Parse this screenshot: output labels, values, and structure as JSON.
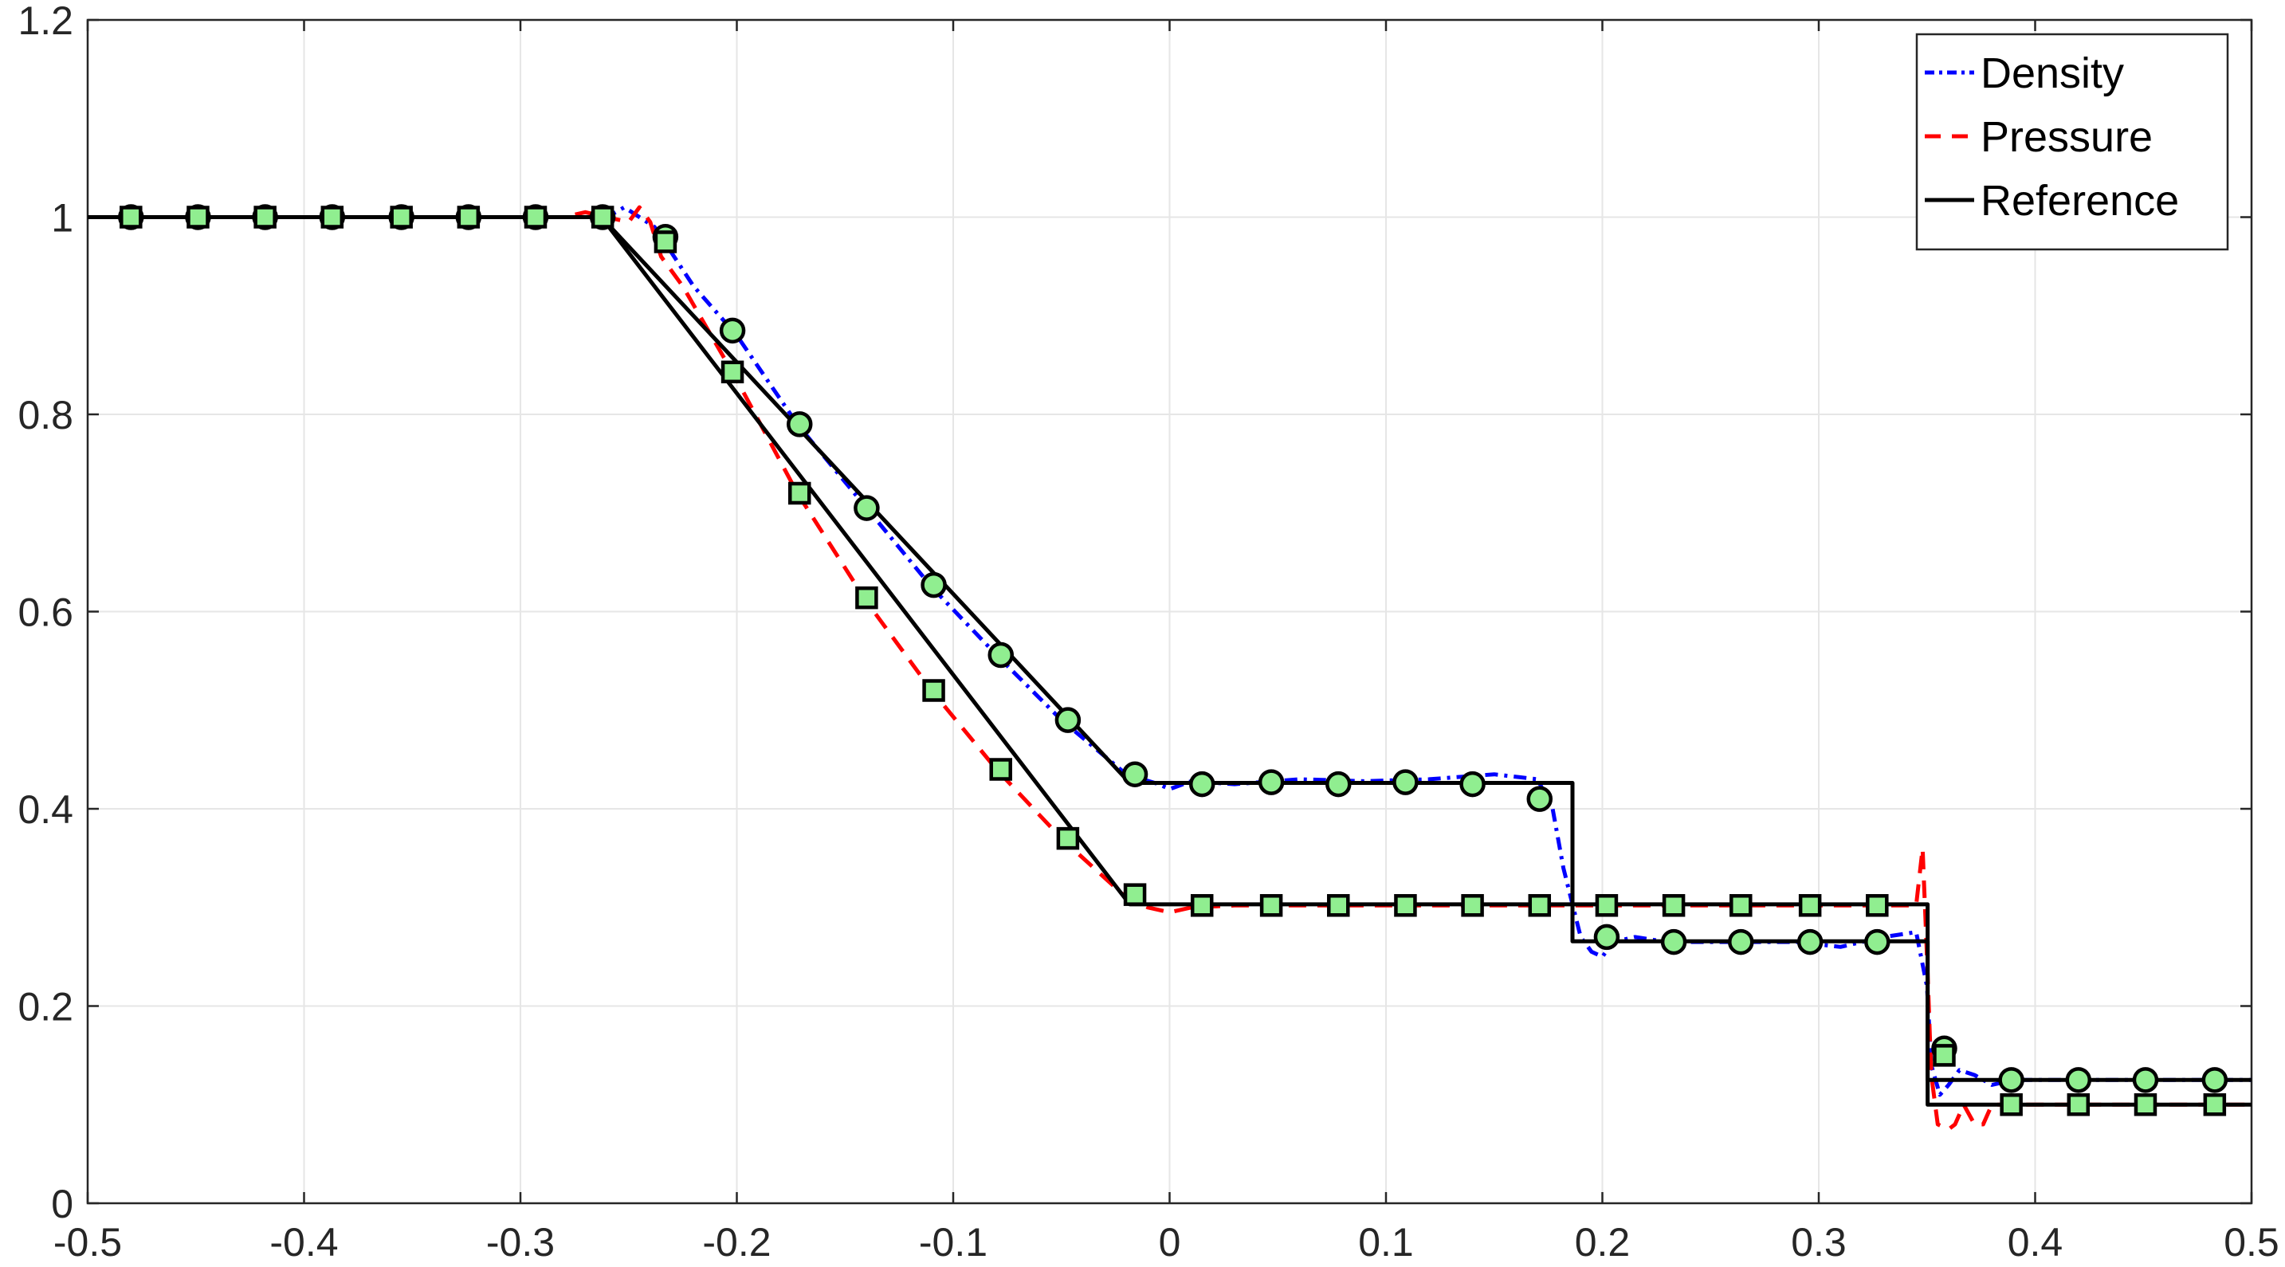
{
  "chart_data": {
    "type": "line",
    "title": "",
    "xlabel": "",
    "ylabel": "",
    "xlim": [
      -0.5,
      0.5
    ],
    "ylim": [
      0,
      1.2
    ],
    "grid": true,
    "legend_position": "top-right",
    "x_ticks": [
      {
        "value": -0.5,
        "label": "-0.5"
      },
      {
        "value": -0.4,
        "label": "-0.4"
      },
      {
        "value": -0.3,
        "label": "-0.3"
      },
      {
        "value": -0.2,
        "label": "-0.2"
      },
      {
        "value": -0.1,
        "label": "-0.1"
      },
      {
        "value": 0,
        "label": "0"
      },
      {
        "value": 0.1,
        "label": "0.1"
      },
      {
        "value": 0.2,
        "label": "0.2"
      },
      {
        "value": 0.3,
        "label": "0.3"
      },
      {
        "value": 0.4,
        "label": "0.4"
      },
      {
        "value": 0.5,
        "label": "0.5"
      }
    ],
    "y_ticks": [
      {
        "value": 0,
        "label": "0"
      },
      {
        "value": 0.2,
        "label": "0.2"
      },
      {
        "value": 0.4,
        "label": "0.4"
      },
      {
        "value": 0.6,
        "label": "0.6"
      },
      {
        "value": 0.8,
        "label": "0.8"
      },
      {
        "value": 1,
        "label": "1"
      },
      {
        "value": 1.2,
        "label": "1.2"
      }
    ],
    "series": [
      {
        "name": "Density",
        "color": "#0000ff",
        "style": "dash-dot",
        "marker": "circle",
        "marker_color": "#90ee90",
        "x": [
          -0.5,
          -0.3,
          -0.26,
          -0.252,
          -0.245,
          -0.238,
          -0.232,
          -0.22,
          -0.2,
          -0.172,
          -0.14,
          -0.11,
          -0.08,
          -0.05,
          -0.02,
          -0.005,
          0.0,
          0.01,
          0.03,
          0.06,
          0.09,
          0.12,
          0.15,
          0.17,
          0.177,
          0.182,
          0.19,
          0.195,
          0.2,
          0.205,
          0.215,
          0.23,
          0.26,
          0.29,
          0.31,
          0.33,
          0.345,
          0.35,
          0.352,
          0.356,
          0.36,
          0.365,
          0.372,
          0.38,
          0.39,
          0.42,
          0.45,
          0.5
        ],
        "y": [
          1.0,
          1.0,
          1.0,
          1.01,
          1.0,
          0.99,
          0.97,
          0.93,
          0.88,
          0.79,
          0.705,
          0.625,
          0.556,
          0.49,
          0.435,
          0.425,
          0.42,
          0.428,
          0.425,
          0.43,
          0.428,
          0.43,
          0.435,
          0.43,
          0.4,
          0.34,
          0.27,
          0.255,
          0.25,
          0.265,
          0.27,
          0.265,
          0.265,
          0.265,
          0.26,
          0.27,
          0.275,
          0.22,
          0.14,
          0.11,
          0.12,
          0.135,
          0.13,
          0.12,
          0.125,
          0.125,
          0.125,
          0.125
        ],
        "markers_x": [
          -0.48,
          -0.449,
          -0.418,
          -0.387,
          -0.355,
          -0.324,
          -0.293,
          -0.262,
          -0.233,
          -0.202,
          -0.171,
          -0.14,
          -0.109,
          -0.078,
          -0.047,
          -0.016,
          0.015,
          0.047,
          0.078,
          0.109,
          0.14,
          0.171,
          0.202,
          0.233,
          0.264,
          0.296,
          0.327,
          0.358,
          0.389,
          0.42,
          0.451,
          0.483
        ],
        "markers_y": [
          1.0,
          1.0,
          1.0,
          1.0,
          1.0,
          1.0,
          1.0,
          1.0,
          0.98,
          0.885,
          0.79,
          0.705,
          0.627,
          0.556,
          0.49,
          0.435,
          0.425,
          0.427,
          0.425,
          0.427,
          0.425,
          0.41,
          0.27,
          0.265,
          0.265,
          0.265,
          0.265,
          0.157,
          0.125,
          0.125,
          0.125,
          0.125
        ]
      },
      {
        "name": "Pressure",
        "color": "#ff0000",
        "style": "dashed",
        "marker": "square",
        "marker_color": "#90ee90",
        "x": [
          -0.5,
          -0.28,
          -0.27,
          -0.26,
          -0.25,
          -0.245,
          -0.24,
          -0.235,
          -0.225,
          -0.2,
          -0.172,
          -0.14,
          -0.11,
          -0.08,
          -0.05,
          -0.02,
          -0.01,
          0.0,
          0.01,
          0.03,
          0.06,
          0.09,
          0.12,
          0.15,
          0.18,
          0.21,
          0.24,
          0.27,
          0.3,
          0.33,
          0.345,
          0.348,
          0.35,
          0.352,
          0.355,
          0.36,
          0.363,
          0.367,
          0.372,
          0.376,
          0.38,
          0.39,
          0.5
        ],
        "y": [
          1.0,
          1.0,
          1.005,
          1.0,
          0.995,
          1.01,
          0.995,
          0.96,
          0.93,
          0.835,
          0.72,
          0.61,
          0.52,
          0.44,
          0.37,
          0.31,
          0.3,
          0.295,
          0.3,
          0.302,
          0.302,
          0.302,
          0.302,
          0.302,
          0.302,
          0.302,
          0.302,
          0.302,
          0.302,
          0.302,
          0.302,
          0.36,
          0.25,
          0.13,
          0.08,
          0.075,
          0.08,
          0.1,
          0.08,
          0.08,
          0.1,
          0.1,
          0.1
        ],
        "markers_x": [
          -0.48,
          -0.449,
          -0.418,
          -0.387,
          -0.355,
          -0.324,
          -0.293,
          -0.262,
          -0.233,
          -0.202,
          -0.171,
          -0.14,
          -0.109,
          -0.078,
          -0.047,
          -0.016,
          0.015,
          0.047,
          0.078,
          0.109,
          0.14,
          0.171,
          0.202,
          0.233,
          0.264,
          0.296,
          0.327,
          0.358,
          0.389,
          0.42,
          0.451,
          0.483
        ],
        "markers_y": [
          1.0,
          1.0,
          1.0,
          1.0,
          1.0,
          1.0,
          1.0,
          1.0,
          0.975,
          0.843,
          0.72,
          0.614,
          0.52,
          0.44,
          0.37,
          0.313,
          0.302,
          0.302,
          0.302,
          0.302,
          0.302,
          0.302,
          0.302,
          0.302,
          0.302,
          0.302,
          0.302,
          0.15,
          0.1,
          0.1,
          0.1,
          0.1
        ]
      },
      {
        "name": "Reference",
        "color": "#000000",
        "style": "solid",
        "marker": "none",
        "x": [
          -0.5,
          -0.2626,
          -0.2626,
          -0.0184,
          0.1862,
          0.1862,
          0.3503,
          0.3503,
          0.5
        ],
        "y": [
          1.0,
          1.0,
          1.0,
          0.4263,
          0.4263,
          0.2656,
          0.2656,
          0.125,
          0.125
        ]
      },
      {
        "name": "",
        "color": "#000000",
        "style": "solid",
        "marker": "none",
        "x": [
          -0.5,
          -0.2626,
          -0.0184,
          0.3503,
          0.3503,
          0.5
        ],
        "y": [
          1.0,
          1.0,
          0.3031,
          0.3031,
          0.1,
          0.1
        ]
      }
    ]
  }
}
